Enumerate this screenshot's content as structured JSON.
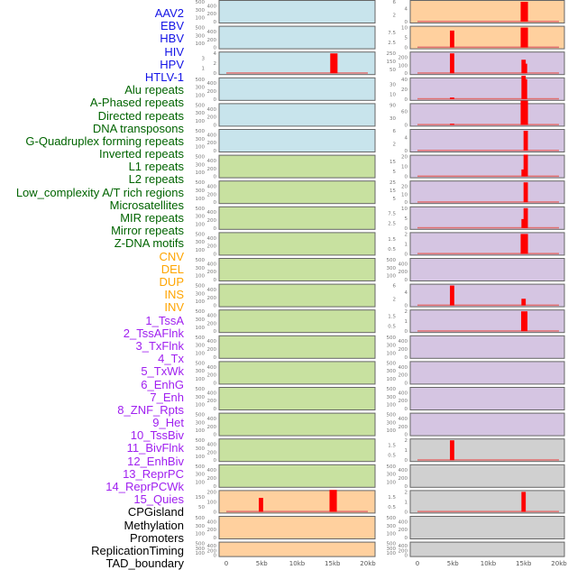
{
  "label_groups": [
    {
      "color": "#1414e6",
      "items": [
        "AAV2",
        "EBV",
        "HBV",
        "HIV",
        "HPV",
        "HTLV-1"
      ]
    },
    {
      "color": "#006400",
      "items": [
        "Alu repeats",
        "A-Phased repeats",
        "Directed repeats",
        "DNA transposons",
        "G-Quadruplex forming repeats",
        "Inverted repeats",
        "L1 repeats",
        "L2 repeats",
        "Low_complexity A/T rich regions",
        "Microsatellites",
        "MIR repeats",
        "Mirror repeats",
        "Z-DNA motifs"
      ]
    },
    {
      "color": "#ffa500",
      "items": [
        "CNV",
        "DEL",
        "DUP",
        "INS",
        "INV"
      ]
    },
    {
      "color": "#a020f0",
      "items": [
        "1_TssA",
        "2_TssAFlnk",
        "3_TxFlnk",
        "4_Tx",
        "5_TxWk",
        "6_EnhG",
        "7_Enh",
        "8_ZNF_Rpts",
        "9_Het",
        "10_TssBiv",
        "11_BivFlnk",
        "12_EnhBiv",
        "13_ReprPC",
        "14_ReprPCWk",
        "15_Quies"
      ]
    },
    {
      "color": "#000000",
      "items": [
        "CPGisland",
        "Methylation",
        "Promoters",
        "ReplicationTiming",
        "TAD_boundary"
      ]
    }
  ],
  "colors": {
    "blue": "#c8e4ec",
    "green": "#c8e1a0",
    "orange": "#ffd09e",
    "purple": "#d5c5e2",
    "gray": "#d0d0d0",
    "peak": "#ff0000",
    "baseline": "#e07070"
  },
  "chart_data": {
    "type": "bar",
    "xlabel": "",
    "xlim_kb": [
      0,
      20
    ],
    "x_ticks": [
      "0",
      "5kb",
      "10kb",
      "15kb",
      "20kb"
    ],
    "x_tick_values": [
      0,
      5,
      10,
      15,
      20
    ],
    "default_y_ticks": [
      0,
      100,
      200,
      300,
      400,
      500
    ],
    "left_panels": [
      {
        "bg": "blue"
      },
      {
        "bg": "blue"
      },
      {
        "bg": "blue",
        "y_ticks": [
          0,
          1,
          2,
          3,
          4
        ],
        "peaks": [
          [
            15.2,
            4,
            0.6
          ]
        ]
      },
      {
        "bg": "blue"
      },
      {
        "bg": "blue"
      },
      {
        "bg": "blue"
      },
      {
        "bg": "green"
      },
      {
        "bg": "green"
      },
      {
        "bg": "green"
      },
      {
        "bg": "green"
      },
      {
        "bg": "green"
      },
      {
        "bg": "green"
      },
      {
        "bg": "green"
      },
      {
        "bg": "green"
      },
      {
        "bg": "green"
      },
      {
        "bg": "green"
      },
      {
        "bg": "green"
      },
      {
        "bg": "green"
      },
      {
        "bg": "green"
      },
      {
        "bg": "orange",
        "y_ticks": [
          0,
          50,
          100,
          150,
          200
        ],
        "peaks": [
          [
            4.9,
            140,
            0.3
          ],
          [
            15.1,
            220,
            0.6
          ]
        ]
      },
      {
        "bg": "orange"
      },
      {
        "bg": "orange"
      }
    ],
    "right_panels": [
      {
        "bg": "orange",
        "y_ticks": [
          0,
          2,
          4,
          6
        ],
        "peaks": [
          [
            15.1,
            6,
            0.6
          ]
        ]
      },
      {
        "bg": "orange",
        "y_ticks": [
          0.0,
          2.5,
          5.0,
          7.5,
          10.0
        ],
        "peaks": [
          [
            4.9,
            8.5,
            0.3
          ],
          [
            15.1,
            10,
            0.6
          ]
        ]
      },
      {
        "bg": "purple",
        "y_ticks": [
          0,
          50,
          100,
          150,
          200,
          250
        ],
        "peaks": [
          [
            4.9,
            250,
            0.3
          ],
          [
            15.0,
            170,
            0.3
          ],
          [
            15.2,
            120,
            0.3
          ]
        ]
      },
      {
        "bg": "purple",
        "y_ticks": [
          0,
          10,
          20,
          30,
          40
        ],
        "peaks": [
          [
            4.9,
            3,
            0.3
          ],
          [
            15.0,
            47,
            0.3
          ],
          [
            15.2,
            40,
            0.3
          ]
        ]
      },
      {
        "bg": "purple",
        "y_ticks": [
          0,
          30,
          60,
          90
        ],
        "peaks": [
          [
            4.9,
            5,
            0.3
          ],
          [
            15.1,
            110,
            0.6
          ]
        ]
      },
      {
        "bg": "purple",
        "y_ticks": [
          0,
          2,
          4,
          6
        ],
        "peaks": [
          [
            15.3,
            6,
            0.3
          ]
        ]
      },
      {
        "bg": "purple",
        "y_ticks": [
          0,
          5,
          10,
          15,
          20
        ],
        "peaks": [
          [
            15.0,
            7,
            0.3
          ],
          [
            15.3,
            22,
            0.3
          ]
        ]
      },
      {
        "bg": "purple",
        "y_ticks": [
          0,
          5,
          10,
          15,
          20,
          25
        ],
        "peaks": [
          [
            15.3,
            25,
            0.3
          ]
        ]
      },
      {
        "bg": "purple",
        "y_ticks": [
          0.0,
          2.5,
          5.0,
          7.5,
          10.0
        ],
        "peaks": [
          [
            15.0,
            4.5,
            0.3
          ],
          [
            15.3,
            10,
            0.3
          ]
        ]
      },
      {
        "bg": "purple",
        "y_ticks": [
          0.0,
          0.5,
          1.0,
          1.5,
          2.0
        ],
        "peaks": [
          [
            15.1,
            2,
            0.6
          ]
        ]
      },
      {
        "bg": "purple"
      },
      {
        "bg": "purple",
        "y_ticks": [
          0,
          2,
          4,
          6
        ],
        "peaks": [
          [
            4.9,
            6,
            0.3
          ],
          [
            15.0,
            2,
            0.3
          ]
        ]
      },
      {
        "bg": "purple",
        "y_ticks": [
          0.0,
          0.5,
          1.0,
          1.5,
          2.0
        ],
        "peaks": [
          [
            15.1,
            2,
            0.5
          ]
        ]
      },
      {
        "bg": "purple"
      },
      {
        "bg": "purple"
      },
      {
        "bg": "purple"
      },
      {
        "bg": "purple"
      },
      {
        "bg": "gray",
        "y_ticks": [
          0.0,
          0.5,
          1.0,
          1.5,
          2.0
        ],
        "peaks": [
          [
            4.9,
            2,
            0.3
          ]
        ]
      },
      {
        "bg": "gray"
      },
      {
        "bg": "gray",
        "y_ticks": [
          0.0,
          0.5,
          1.0,
          1.5,
          2.0
        ],
        "peaks": [
          [
            15.0,
            2,
            0.3
          ]
        ]
      },
      {
        "bg": "gray"
      },
      {
        "bg": "gray"
      }
    ]
  }
}
